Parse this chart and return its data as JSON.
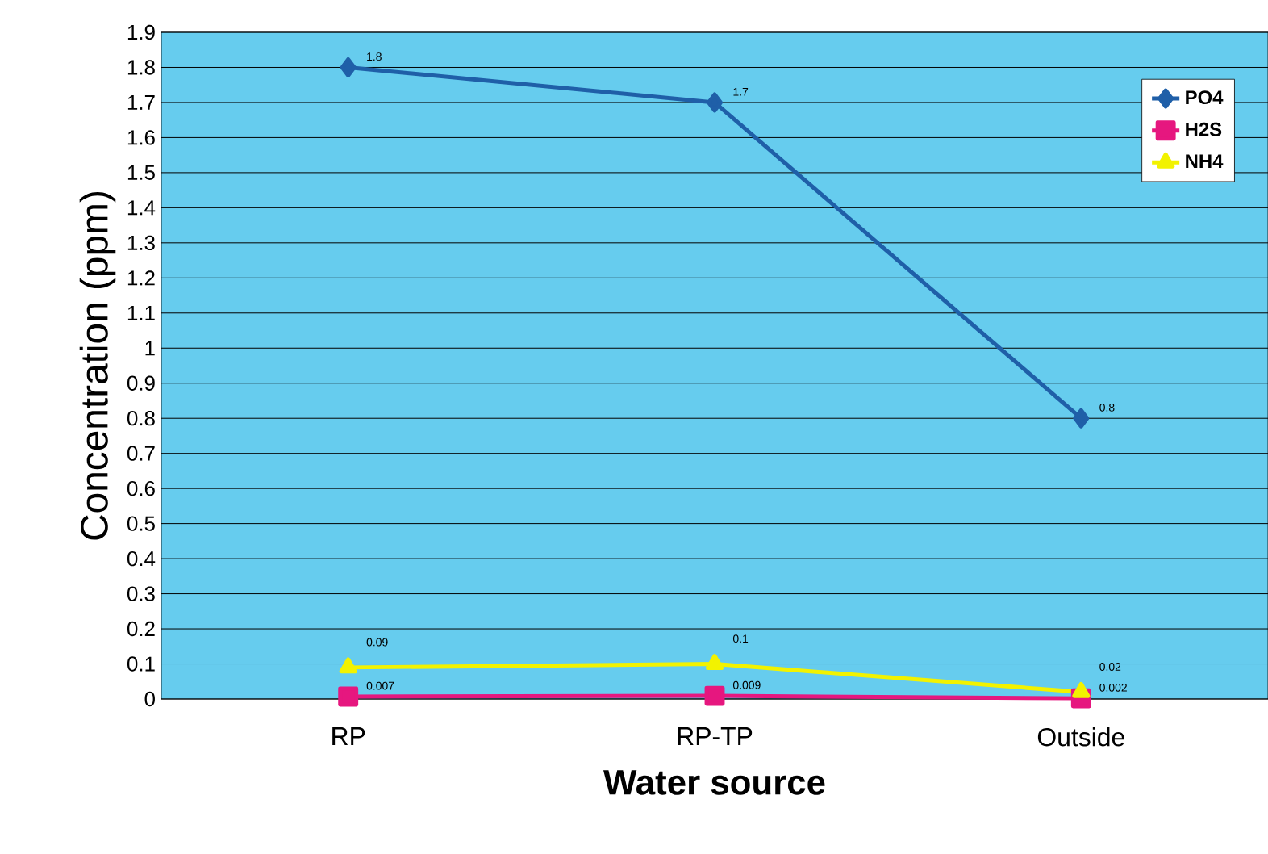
{
  "chart_data": {
    "type": "line",
    "xlabel": "Water source",
    "ylabel": "Concentration (ppm)",
    "categories": [
      "RP",
      "RP-TP",
      "Outside"
    ],
    "series": [
      {
        "name": "PO4",
        "color": "#1f5fa8",
        "marker": "diamond",
        "values": [
          1.8,
          1.7,
          0.8
        ],
        "value_labels": [
          "1.8",
          "1.7",
          "0.8"
        ]
      },
      {
        "name": "H2S",
        "color": "#e6177f",
        "marker": "square",
        "values": [
          0.007,
          0.009,
          0.002
        ],
        "value_labels": [
          "0.007",
          "0.009",
          "0.002"
        ]
      },
      {
        "name": "NH4",
        "color": "#f2f200",
        "marker": "triangle",
        "values": [
          0.09,
          0.1,
          0.02
        ],
        "value_labels": [
          "0.09",
          "0.1",
          "0.02"
        ]
      }
    ],
    "ylim": [
      0,
      1.9
    ],
    "yticks": [
      0,
      0.1,
      0.2,
      0.3,
      0.4,
      0.5,
      0.6,
      0.7,
      0.8,
      0.9,
      1,
      1.1,
      1.2,
      1.3,
      1.4,
      1.5,
      1.6,
      1.7,
      1.8,
      1.9
    ],
    "grid": "y",
    "legend": "top right"
  }
}
